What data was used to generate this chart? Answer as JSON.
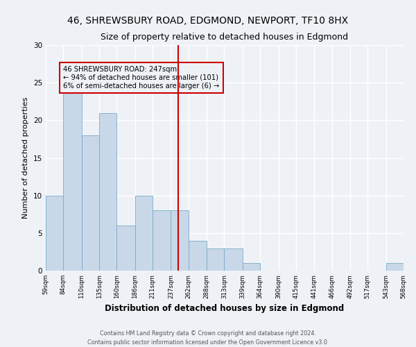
{
  "title1": "46, SHREWSBURY ROAD, EDGMOND, NEWPORT, TF10 8HX",
  "title2": "Size of property relative to detached houses in Edgmond",
  "xlabel": "Distribution of detached houses by size in Edgmond",
  "ylabel": "Number of detached properties",
  "bar_color": "#c8d8e8",
  "bar_edge_color": "#7aaac8",
  "bin_edges": [
    59,
    84,
    110,
    135,
    160,
    186,
    211,
    237,
    262,
    288,
    313,
    339,
    364,
    390,
    415,
    441,
    466,
    492,
    517,
    543,
    568
  ],
  "bar_heights": [
    10,
    25,
    18,
    21,
    6,
    10,
    8,
    8,
    4,
    3,
    3,
    1,
    0,
    0,
    0,
    0,
    0,
    0,
    0,
    1
  ],
  "tick_labels": [
    "59sqm",
    "84sqm",
    "110sqm",
    "135sqm",
    "160sqm",
    "186sqm",
    "211sqm",
    "237sqm",
    "262sqm",
    "288sqm",
    "313sqm",
    "339sqm",
    "364sqm",
    "390sqm",
    "415sqm",
    "441sqm",
    "466sqm",
    "492sqm",
    "517sqm",
    "543sqm",
    "568sqm"
  ],
  "vline_x": 247,
  "vline_color": "#cc0000",
  "annotation_text": "46 SHREWSBURY ROAD: 247sqm\n← 94% of detached houses are smaller (101)\n6% of semi-detached houses are larger (6) →",
  "annotation_box_color": "#cc0000",
  "ylim": [
    0,
    30
  ],
  "yticks": [
    0,
    5,
    10,
    15,
    20,
    25,
    30
  ],
  "footer1": "Contains HM Land Registry data © Crown copyright and database right 2024.",
  "footer2": "Contains public sector information licensed under the Open Government Licence v3.0.",
  "bg_color": "#eef2f7",
  "grid_color": "#ffffff",
  "title1_fontsize": 10,
  "title2_fontsize": 9,
  "xlabel_fontsize": 8.5,
  "ylabel_fontsize": 8
}
